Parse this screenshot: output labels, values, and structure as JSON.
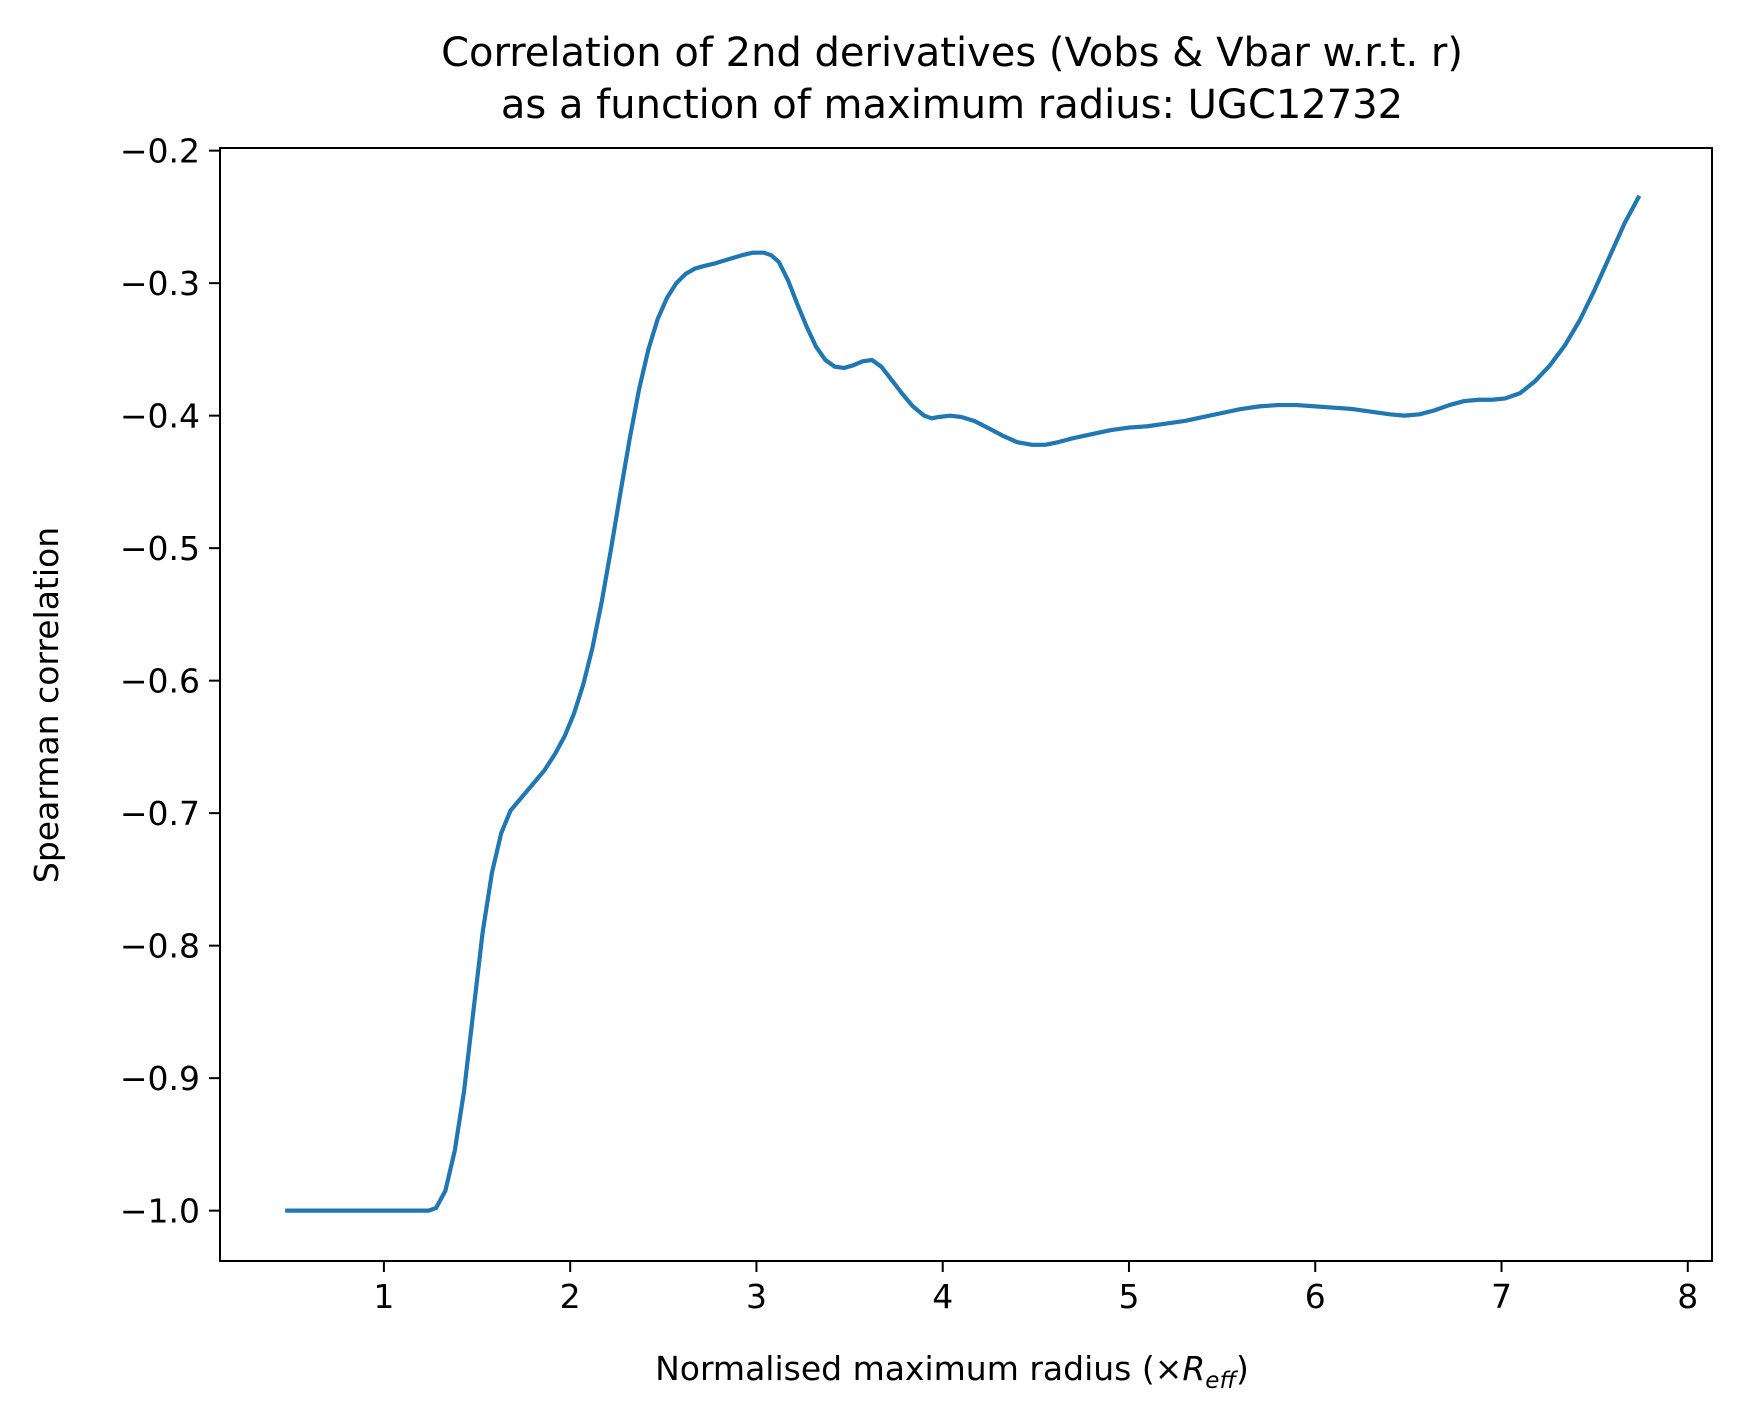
{
  "chart_data": {
    "type": "line",
    "title_line1": "Correlation of 2nd derivatives (Vobs & Vbar w.r.t. r)",
    "title_line2": "as a function of maximum radius: UGC12732",
    "xlabel_prefix": "Normalised maximum radius (×",
    "xlabel_symbol": "R",
    "xlabel_subscript": "eff",
    "xlabel_suffix": ")",
    "ylabel": "Spearman correlation",
    "xlim": [
      0.12,
      8.13
    ],
    "ylim": [
      -1.038,
      -0.198
    ],
    "x_ticks": [
      {
        "value": 1,
        "label": "1"
      },
      {
        "value": 2,
        "label": "2"
      },
      {
        "value": 3,
        "label": "3"
      },
      {
        "value": 4,
        "label": "4"
      },
      {
        "value": 5,
        "label": "5"
      },
      {
        "value": 6,
        "label": "6"
      },
      {
        "value": 7,
        "label": "7"
      },
      {
        "value": 8,
        "label": "8"
      }
    ],
    "y_ticks": [
      {
        "value": -1.0,
        "label": "−1.0"
      },
      {
        "value": -0.9,
        "label": "−0.9"
      },
      {
        "value": -0.8,
        "label": "−0.8"
      },
      {
        "value": -0.7,
        "label": "−0.7"
      },
      {
        "value": -0.6,
        "label": "−0.6"
      },
      {
        "value": -0.5,
        "label": "−0.5"
      },
      {
        "value": -0.4,
        "label": "−0.4"
      },
      {
        "value": -0.3,
        "label": "−0.3"
      },
      {
        "value": -0.2,
        "label": "−0.2"
      }
    ],
    "grid": false,
    "series": [
      {
        "color": "#1f77b4",
        "points": [
          [
            0.47,
            -1.0
          ],
          [
            0.8,
            -1.0
          ],
          [
            1.1,
            -1.0
          ],
          [
            1.24,
            -1.0
          ],
          [
            1.28,
            -0.998
          ],
          [
            1.33,
            -0.985
          ],
          [
            1.38,
            -0.955
          ],
          [
            1.43,
            -0.91
          ],
          [
            1.48,
            -0.85
          ],
          [
            1.53,
            -0.79
          ],
          [
            1.58,
            -0.745
          ],
          [
            1.63,
            -0.715
          ],
          [
            1.68,
            -0.698
          ],
          [
            1.74,
            -0.688
          ],
          [
            1.8,
            -0.678
          ],
          [
            1.86,
            -0.668
          ],
          [
            1.92,
            -0.655
          ],
          [
            1.97,
            -0.642
          ],
          [
            2.02,
            -0.625
          ],
          [
            2.07,
            -0.603
          ],
          [
            2.12,
            -0.575
          ],
          [
            2.17,
            -0.54
          ],
          [
            2.22,
            -0.5
          ],
          [
            2.27,
            -0.458
          ],
          [
            2.32,
            -0.417
          ],
          [
            2.37,
            -0.38
          ],
          [
            2.42,
            -0.35
          ],
          [
            2.47,
            -0.327
          ],
          [
            2.52,
            -0.311
          ],
          [
            2.57,
            -0.3
          ],
          [
            2.62,
            -0.293
          ],
          [
            2.67,
            -0.289
          ],
          [
            2.72,
            -0.287
          ],
          [
            2.78,
            -0.285
          ],
          [
            2.85,
            -0.282
          ],
          [
            2.92,
            -0.279
          ],
          [
            2.98,
            -0.277
          ],
          [
            3.04,
            -0.277
          ],
          [
            3.08,
            -0.279
          ],
          [
            3.12,
            -0.284
          ],
          [
            3.17,
            -0.298
          ],
          [
            3.22,
            -0.316
          ],
          [
            3.27,
            -0.333
          ],
          [
            3.32,
            -0.348
          ],
          [
            3.37,
            -0.358
          ],
          [
            3.42,
            -0.363
          ],
          [
            3.47,
            -0.364
          ],
          [
            3.52,
            -0.362
          ],
          [
            3.57,
            -0.359
          ],
          [
            3.62,
            -0.358
          ],
          [
            3.67,
            -0.363
          ],
          [
            3.72,
            -0.372
          ],
          [
            3.78,
            -0.383
          ],
          [
            3.84,
            -0.393
          ],
          [
            3.9,
            -0.4
          ],
          [
            3.94,
            -0.402
          ],
          [
            3.98,
            -0.401
          ],
          [
            4.04,
            -0.4
          ],
          [
            4.1,
            -0.401
          ],
          [
            4.17,
            -0.404
          ],
          [
            4.24,
            -0.409
          ],
          [
            4.32,
            -0.415
          ],
          [
            4.4,
            -0.42
          ],
          [
            4.48,
            -0.422
          ],
          [
            4.55,
            -0.422
          ],
          [
            4.62,
            -0.42
          ],
          [
            4.7,
            -0.417
          ],
          [
            4.8,
            -0.414
          ],
          [
            4.9,
            -0.411
          ],
          [
            5.0,
            -0.409
          ],
          [
            5.1,
            -0.408
          ],
          [
            5.2,
            -0.406
          ],
          [
            5.3,
            -0.404
          ],
          [
            5.4,
            -0.401
          ],
          [
            5.5,
            -0.398
          ],
          [
            5.6,
            -0.395
          ],
          [
            5.7,
            -0.393
          ],
          [
            5.8,
            -0.392
          ],
          [
            5.9,
            -0.392
          ],
          [
            6.0,
            -0.393
          ],
          [
            6.1,
            -0.394
          ],
          [
            6.2,
            -0.395
          ],
          [
            6.3,
            -0.397
          ],
          [
            6.4,
            -0.399
          ],
          [
            6.48,
            -0.4
          ],
          [
            6.56,
            -0.399
          ],
          [
            6.64,
            -0.396
          ],
          [
            6.72,
            -0.392
          ],
          [
            6.8,
            -0.389
          ],
          [
            6.88,
            -0.388
          ],
          [
            6.95,
            -0.388
          ],
          [
            7.02,
            -0.387
          ],
          [
            7.1,
            -0.383
          ],
          [
            7.18,
            -0.374
          ],
          [
            7.26,
            -0.362
          ],
          [
            7.34,
            -0.347
          ],
          [
            7.42,
            -0.328
          ],
          [
            7.5,
            -0.305
          ],
          [
            7.58,
            -0.28
          ],
          [
            7.66,
            -0.255
          ],
          [
            7.74,
            -0.234
          ]
        ]
      }
    ]
  }
}
